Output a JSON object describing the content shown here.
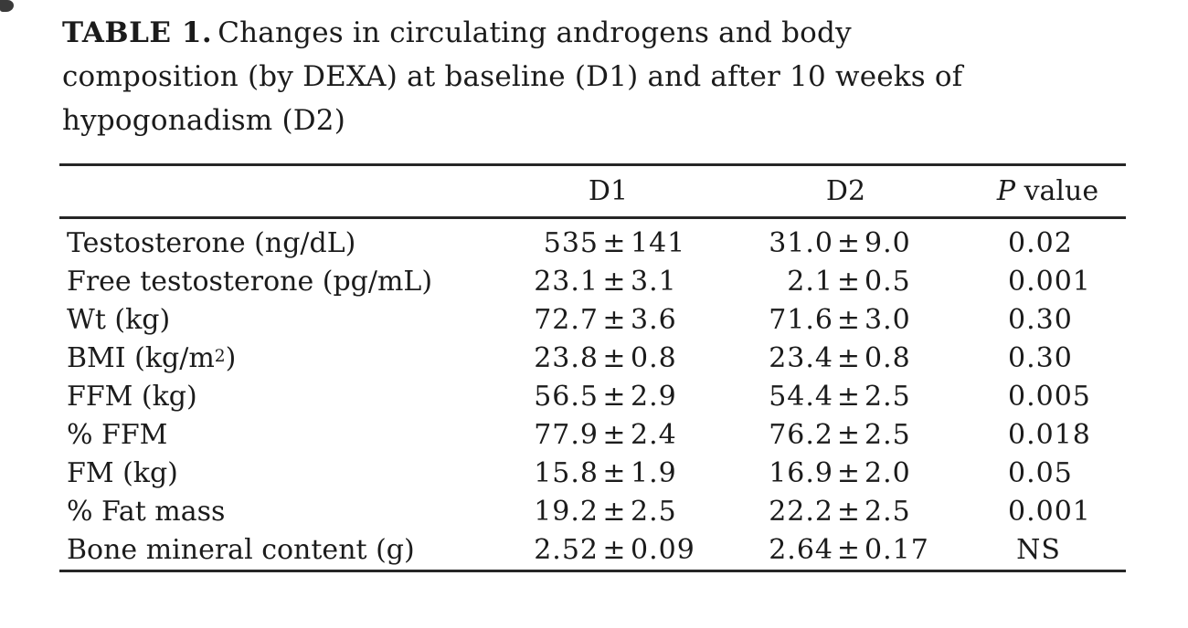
{
  "title": {
    "label": "TABLE 1.",
    "line1": "Changes in circulating androgens and body",
    "line2": "composition (by DEXA) at baseline (D1) and after 10 weeks of",
    "line3": "hypogonadism (D2)"
  },
  "table": {
    "pm": "±",
    "header": {
      "d1": "D1",
      "d2": "D2",
      "p_italic": "P",
      "p_rest": " value"
    },
    "rows": [
      {
        "label": "Testosterone (ng/dL)",
        "d1_mean": "535",
        "d1_sd": "141",
        "d2_mean": "31.0",
        "d2_sd": "9.0",
        "p": "0.02"
      },
      {
        "label": "Free testosterone (pg/mL)",
        "d1_mean": "23.1",
        "d1_sd": "3.1",
        "d2_mean": "2.1",
        "d2_sd": "0.5",
        "p": "0.001"
      },
      {
        "label": "Wt (kg)",
        "d1_mean": "72.7",
        "d1_sd": "3.6",
        "d2_mean": "71.6",
        "d2_sd": "3.0",
        "p": "0.30"
      },
      {
        "label_pre": "BMI (kg/m",
        "label_sup": "2",
        "label_post": ")",
        "d1_mean": "23.8",
        "d1_sd": "0.8",
        "d2_mean": "23.4",
        "d2_sd": "0.8",
        "p": "0.30"
      },
      {
        "label": "FFM (kg)",
        "d1_mean": "56.5",
        "d1_sd": "2.9",
        "d2_mean": "54.4",
        "d2_sd": "2.5",
        "p": "0.005"
      },
      {
        "label": "% FFM",
        "d1_mean": "77.9",
        "d1_sd": "2.4",
        "d2_mean": "76.2",
        "d2_sd": "2.5",
        "p": "0.018"
      },
      {
        "label": "FM (kg)",
        "d1_mean": "15.8",
        "d1_sd": "1.9",
        "d2_mean": "16.9",
        "d2_sd": "2.0",
        "p": "0.05"
      },
      {
        "label": "% Fat mass",
        "d1_mean": "19.2",
        "d1_sd": "2.5",
        "d2_mean": "22.2",
        "d2_sd": "2.5",
        "p": "0.001"
      },
      {
        "label": "Bone mineral content (g)",
        "d1_mean": "2.52",
        "d1_sd": "0.09",
        "d2_mean": "2.64",
        "d2_sd": "0.17",
        "p": "NS"
      }
    ]
  },
  "colors": {
    "text": "#1b1b1b",
    "rule": "#262626",
    "background": "#ffffff"
  }
}
